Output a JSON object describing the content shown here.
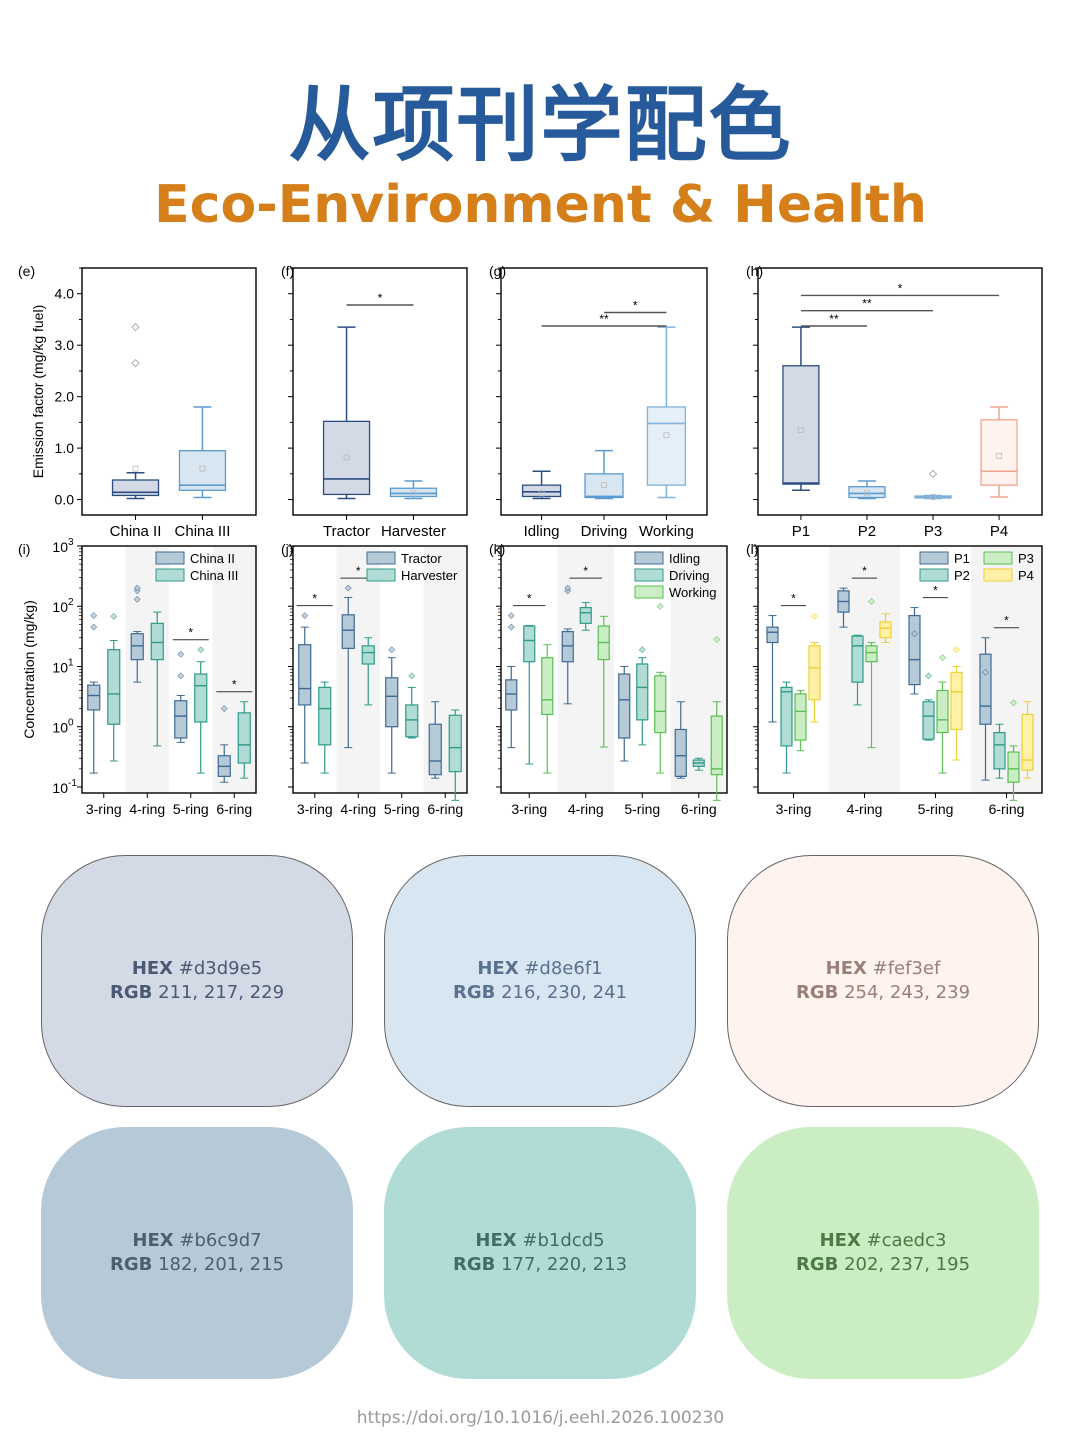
{
  "title_cn": "从项刊学配色",
  "title_en": "Eco-Environment & Health",
  "footer": "https://doi.org/10.1016/j.eehl.2026.100230",
  "palette": [
    {
      "hex_label": "HEX",
      "hex": "#d3d9e5",
      "rgb_label": "RGB",
      "rgb": "211, 217, 229",
      "text_color": "#4a5a75"
    },
    {
      "hex_label": "HEX",
      "hex": "#d8e6f1",
      "rgb_label": "RGB",
      "rgb": "216, 230, 241",
      "text_color": "#5a7190"
    },
    {
      "hex_label": "HEX",
      "hex": "#fef3ef",
      "rgb_label": "RGB",
      "rgb": "254, 243, 239",
      "text_color": "#9a7f78"
    },
    {
      "hex_label": "HEX",
      "hex": "#b6c9d7",
      "rgb_label": "RGB",
      "rgb": "182, 201, 215",
      "text_color": "#4a5f72"
    },
    {
      "hex_label": "HEX",
      "hex": "#b1dcd5",
      "rgb_label": "RGB",
      "rgb": "177, 220, 213",
      "text_color": "#3f6e66"
    },
    {
      "hex_label": "HEX",
      "hex": "#caedc3",
      "rgb_label": "RGB",
      "rgb": "202, 237, 195",
      "text_color": "#4c7a45"
    }
  ],
  "chart_data": [
    {
      "panel": "(e)",
      "type": "box",
      "ylabel": "Emission factor (mg/kg fuel)",
      "ylim": [
        -0.3,
        4.5
      ],
      "yticks": [
        "0.0",
        "1.0",
        "2.0",
        "3.0",
        "4.0"
      ],
      "categories": [
        "China II",
        "China III"
      ],
      "boxes": [
        {
          "min": 0.02,
          "q1": 0.08,
          "median": 0.14,
          "q3": 0.38,
          "max": 0.52,
          "mean": 0.6,
          "outliers": [
            2.65,
            3.35
          ],
          "fill": "#d3d9e5",
          "stroke": "#2d4e82"
        },
        {
          "min": 0.04,
          "q1": 0.18,
          "median": 0.28,
          "q3": 0.95,
          "max": 1.8,
          "mean": 0.6,
          "outliers": [],
          "fill": "#d8e6f1",
          "stroke": "#5b9bd1"
        }
      ],
      "sig": []
    },
    {
      "panel": "(f)",
      "type": "box",
      "ylim": [
        -0.3,
        4.5
      ],
      "categories": [
        "Tractor",
        "Harvester"
      ],
      "boxes": [
        {
          "min": 0.02,
          "q1": 0.1,
          "median": 0.4,
          "q3": 1.52,
          "max": 3.35,
          "mean": 0.82,
          "outliers": [],
          "fill": "#d3d9e5",
          "stroke": "#2d4e82"
        },
        {
          "min": 0.02,
          "q1": 0.06,
          "median": 0.12,
          "q3": 0.22,
          "max": 0.36,
          "mean": 0.12,
          "outliers": [],
          "fill": "#d8e6f1",
          "stroke": "#5b9bd1"
        }
      ],
      "sig": [
        {
          "from": 0,
          "to": 1,
          "label": "*"
        }
      ]
    },
    {
      "panel": "(g)",
      "type": "box",
      "ylim": [
        -0.3,
        4.5
      ],
      "categories": [
        "Idling",
        "Driving",
        "Working"
      ],
      "boxes": [
        {
          "min": 0.02,
          "q1": 0.06,
          "median": 0.15,
          "q3": 0.28,
          "max": 0.55,
          "mean": 0.12,
          "outliers": [],
          "fill": "#d3d9e5",
          "stroke": "#2d4e82"
        },
        {
          "min": 0.02,
          "q1": 0.04,
          "median": 0.06,
          "q3": 0.5,
          "max": 0.95,
          "mean": 0.28,
          "outliers": [],
          "fill": "#d8e6f1",
          "stroke": "#5b9bd1"
        },
        {
          "min": 0.04,
          "q1": 0.28,
          "median": 1.48,
          "q3": 1.8,
          "max": 3.35,
          "mean": 1.25,
          "outliers": [],
          "fill": "#e4eff8",
          "stroke": "#7fb2dc"
        }
      ],
      "sig": [
        {
          "from": 0,
          "to": 2,
          "label": "**"
        },
        {
          "from": 1,
          "to": 2,
          "label": "*"
        }
      ]
    },
    {
      "panel": "(h)",
      "type": "box",
      "ylim": [
        -0.3,
        4.5
      ],
      "categories": [
        "P1",
        "P2",
        "P3",
        "P4"
      ],
      "boxes": [
        {
          "min": 0.18,
          "q1": 0.3,
          "median": 0.32,
          "q3": 2.6,
          "max": 3.35,
          "mean": 1.35,
          "outliers": [],
          "fill": "#d3d9e5",
          "stroke": "#2d4e82"
        },
        {
          "min": 0.02,
          "q1": 0.04,
          "median": 0.12,
          "q3": 0.25,
          "max": 0.36,
          "mean": 0.12,
          "outliers": [],
          "fill": "#d8e6f1",
          "stroke": "#5b9bd1"
        },
        {
          "min": 0.02,
          "q1": 0.03,
          "median": 0.05,
          "q3": 0.07,
          "max": 0.08,
          "mean": 0.05,
          "outliers": [
            0.5
          ],
          "fill": "#d8e6f1",
          "stroke": "#7fb2dc"
        },
        {
          "min": 0.05,
          "q1": 0.28,
          "median": 0.55,
          "q3": 1.55,
          "max": 1.8,
          "mean": 0.85,
          "outliers": [],
          "fill": "#fef3ef",
          "stroke": "#f2a58d"
        }
      ],
      "sig": [
        {
          "from": 0,
          "to": 1,
          "label": "**"
        },
        {
          "from": 0,
          "to": 2,
          "label": "**"
        },
        {
          "from": 0,
          "to": 3,
          "label": "*"
        }
      ]
    },
    {
      "panel": "(i)",
      "type": "box",
      "ylabel": "Concentration (mg/kg)",
      "yscale": "log",
      "yticks": [
        "10",
        "10",
        "10",
        "10",
        "10"
      ],
      "ytick_exponents": [
        "-1",
        "0",
        "1",
        "2",
        "3"
      ],
      "categories": [
        "3-ring",
        "4-ring",
        "5-ring",
        "6-ring"
      ],
      "legend": [
        "China II",
        "China III"
      ],
      "groups": [
        [
          {
            "min": 0.17,
            "q1": 1.9,
            "median": 3.3,
            "q3": 4.9,
            "max": 5.5,
            "outliers": [
              45,
              70
            ]
          },
          {
            "min": 0.27,
            "q1": 1.1,
            "median": 3.5,
            "q3": 19,
            "max": 27,
            "outliers": [
              68
            ]
          }
        ],
        [
          {
            "min": 5.5,
            "q1": 13,
            "median": 22,
            "q3": 35,
            "max": 38,
            "outliers": [
              130,
              180,
              200
            ]
          },
          {
            "min": 0.48,
            "q1": 13,
            "median": 25,
            "q3": 52,
            "max": 80,
            "outliers": []
          }
        ],
        [
          {
            "min": 0.55,
            "q1": 0.65,
            "median": 1.5,
            "q3": 2.7,
            "max": 3.3,
            "outliers": [
              7,
              16
            ]
          },
          {
            "min": 0.17,
            "q1": 1.2,
            "median": 4.8,
            "q3": 7.5,
            "max": 12,
            "outliers": [
              19
            ]
          }
        ],
        [
          {
            "min": 0.12,
            "q1": 0.15,
            "median": 0.22,
            "q3": 0.33,
            "max": 0.5,
            "outliers": [
              2
            ]
          },
          {
            "min": 0.14,
            "q1": 0.25,
            "median": 0.5,
            "q3": 1.7,
            "max": 2.6,
            "outliers": []
          }
        ]
      ],
      "sig": [
        {
          "group": 2,
          "label": "*"
        },
        {
          "group": 3,
          "label": "*"
        }
      ]
    },
    {
      "panel": "(j)",
      "type": "box",
      "yscale": "log",
      "categories": [
        "3-ring",
        "4-ring",
        "5-ring",
        "6-ring"
      ],
      "legend": [
        "Tractor",
        "Harvester"
      ],
      "groups": [
        [
          {
            "min": 0.25,
            "q1": 2.3,
            "median": 4.3,
            "q3": 23,
            "max": 45,
            "outliers": [
              70
            ]
          },
          {
            "min": 0.17,
            "q1": 0.5,
            "median": 2,
            "q3": 4.5,
            "max": 5.5,
            "outliers": []
          }
        ],
        [
          {
            "min": 0.45,
            "q1": 20,
            "median": 40,
            "q3": 72,
            "max": 140,
            "outliers": [
              200
            ]
          },
          {
            "min": 2.3,
            "q1": 11,
            "median": 17,
            "q3": 22,
            "max": 30,
            "outliers": []
          }
        ],
        [
          {
            "min": 0.17,
            "q1": 1,
            "median": 3.2,
            "q3": 6.5,
            "max": 14,
            "outliers": [
              19
            ]
          },
          {
            "min": 0.65,
            "q1": 0.68,
            "median": 1.3,
            "q3": 2.3,
            "max": 4.5,
            "outliers": [
              7
            ]
          }
        ],
        [
          {
            "min": 0.14,
            "q1": 0.16,
            "median": 0.27,
            "q3": 1.1,
            "max": 2.6,
            "outliers": []
          },
          {
            "min": 0.06,
            "q1": 0.18,
            "median": 0.45,
            "q3": 1.55,
            "max": 1.9,
            "outliers": []
          }
        ]
      ],
      "sig": [
        {
          "group": 0,
          "label": "*"
        },
        {
          "group": 1,
          "label": "*"
        }
      ]
    },
    {
      "panel": "(k)",
      "type": "box",
      "yscale": "log",
      "categories": [
        "3-ring",
        "4-ring",
        "5-ring",
        "6-ring"
      ],
      "legend": [
        "Idling",
        "Driving",
        "Working"
      ],
      "groups": [
        [
          {
            "min": 0.45,
            "q1": 1.9,
            "median": 3.5,
            "q3": 6,
            "max": 10,
            "outliers": [
              45,
              70
            ]
          },
          {
            "min": 0.24,
            "q1": 12,
            "median": 27,
            "q3": 47,
            "max": 48,
            "outliers": []
          },
          {
            "min": 0.17,
            "q1": 1.6,
            "median": 2.8,
            "q3": 14,
            "max": 23,
            "outliers": []
          }
        ],
        [
          {
            "min": 2.4,
            "q1": 12,
            "median": 22,
            "q3": 38,
            "max": 42,
            "outliers": [
              180,
              200
            ]
          },
          {
            "min": 40,
            "q1": 52,
            "median": 78,
            "q3": 95,
            "max": 115,
            "outliers": []
          },
          {
            "min": 0.46,
            "q1": 13,
            "median": 25,
            "q3": 47,
            "max": 68,
            "outliers": []
          }
        ],
        [
          {
            "min": 0.27,
            "q1": 0.65,
            "median": 2.8,
            "q3": 7.5,
            "max": 10,
            "outliers": []
          },
          {
            "min": 0.5,
            "q1": 1.3,
            "median": 4.5,
            "q3": 11,
            "max": 14,
            "outliers": [
              19
            ]
          },
          {
            "min": 0.17,
            "q1": 0.8,
            "median": 1.8,
            "q3": 7,
            "max": 8,
            "outliers": [
              100
            ]
          }
        ],
        [
          {
            "min": 0.14,
            "q1": 0.15,
            "median": 0.33,
            "q3": 0.9,
            "max": 2.6,
            "outliers": []
          },
          {
            "min": 0.19,
            "q1": 0.22,
            "median": 0.25,
            "q3": 0.28,
            "max": 0.3,
            "outliers": []
          },
          {
            "min": 0.06,
            "q1": 0.16,
            "median": 0.2,
            "q3": 1.5,
            "max": 2.6,
            "outliers": [
              28
            ]
          }
        ]
      ],
      "sig": [
        {
          "group": 0,
          "label": "*"
        },
        {
          "group": 1,
          "label": "*"
        }
      ]
    },
    {
      "panel": "(l)",
      "type": "box",
      "yscale": "log",
      "categories": [
        "3-ring",
        "4-ring",
        "5-ring",
        "6-ring"
      ],
      "legend": [
        "P1",
        "P2",
        "P3",
        "P4"
      ],
      "groups": [
        [
          {
            "min": 1.2,
            "q1": 25,
            "median": 37,
            "q3": 45,
            "max": 70,
            "outliers": []
          },
          {
            "min": 0.17,
            "q1": 0.48,
            "median": 3.8,
            "q3": 4.5,
            "max": 5.5,
            "outliers": []
          },
          {
            "min": 0.4,
            "q1": 0.6,
            "median": 1.8,
            "q3": 3.5,
            "max": 4,
            "outliers": []
          },
          {
            "min": 1.2,
            "q1": 2.8,
            "median": 9.5,
            "q3": 22,
            "max": 25,
            "outliers": [
              68
            ]
          }
        ],
        [
          {
            "min": 45,
            "q1": 80,
            "median": 120,
            "q3": 180,
            "max": 200,
            "outliers": []
          },
          {
            "min": 2.3,
            "q1": 5.5,
            "median": 22,
            "q3": 32,
            "max": 33,
            "outliers": []
          },
          {
            "min": 0.45,
            "q1": 12,
            "median": 17,
            "q3": 22,
            "max": 25,
            "outliers": [
              120
            ]
          },
          {
            "min": 25,
            "q1": 30,
            "median": 43,
            "q3": 55,
            "max": 75,
            "outliers": []
          }
        ],
        [
          {
            "min": 3.5,
            "q1": 5,
            "median": 13,
            "q3": 70,
            "max": 95,
            "outliers": [
              35
            ]
          },
          {
            "min": 0.6,
            "q1": 0.62,
            "median": 1.5,
            "q3": 2.6,
            "max": 2.8,
            "outliers": [
              7
            ]
          },
          {
            "min": 0.17,
            "q1": 0.8,
            "median": 1.3,
            "q3": 4,
            "max": 5.5,
            "outliers": [
              14
            ]
          },
          {
            "min": 0.28,
            "q1": 0.9,
            "median": 3.8,
            "q3": 8,
            "max": 10,
            "outliers": [
              19
            ]
          }
        ],
        [
          {
            "min": 0.13,
            "q1": 1.1,
            "median": 2.2,
            "q3": 16,
            "max": 30,
            "outliers": [
              8
            ]
          },
          {
            "min": 0.14,
            "q1": 0.2,
            "median": 0.5,
            "q3": 0.8,
            "max": 1.1,
            "outliers": []
          },
          {
            "min": 0.06,
            "q1": 0.12,
            "median": 0.2,
            "q3": 0.38,
            "max": 0.48,
            "outliers": [
              2.5
            ]
          },
          {
            "min": 0.14,
            "q1": 0.19,
            "median": 0.28,
            "q3": 1.6,
            "max": 2.6,
            "outliers": []
          }
        ]
      ],
      "sig": [
        {
          "group": 0,
          "label": "*"
        },
        {
          "group": 1,
          "label": "*"
        },
        {
          "group": 2,
          "label": "*"
        },
        {
          "group": 3,
          "label": "*"
        }
      ]
    }
  ]
}
